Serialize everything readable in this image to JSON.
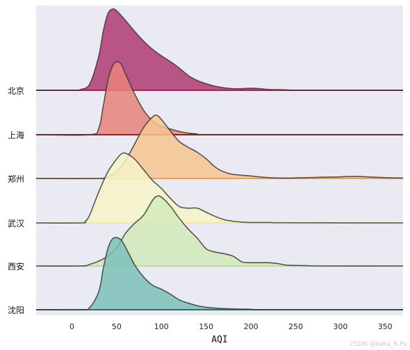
{
  "chart_data": {
    "type": "ridgeline",
    "title": "",
    "xlabel": "AQI",
    "ylabel": "",
    "xlim": [
      -40,
      370
    ],
    "xticks": [
      0,
      50,
      100,
      150,
      200,
      250,
      300,
      350
    ],
    "grid": false,
    "background": "#EAEAF2",
    "series": [
      {
        "name": "北京",
        "fill": "#B03A73",
        "baseline": "#C2185B",
        "points": [
          [
            -40,
            0
          ],
          [
            0,
            0
          ],
          [
            10,
            0.01
          ],
          [
            20,
            0.08
          ],
          [
            30,
            0.42
          ],
          [
            35,
            0.72
          ],
          [
            40,
            0.93
          ],
          [
            45,
            0.99
          ],
          [
            50,
            0.97
          ],
          [
            60,
            0.85
          ],
          [
            70,
            0.72
          ],
          [
            80,
            0.6
          ],
          [
            90,
            0.5
          ],
          [
            100,
            0.42
          ],
          [
            110,
            0.35
          ],
          [
            120,
            0.27
          ],
          [
            130,
            0.18
          ],
          [
            140,
            0.12
          ],
          [
            150,
            0.08
          ],
          [
            160,
            0.05
          ],
          [
            170,
            0.03
          ],
          [
            180,
            0.02
          ],
          [
            190,
            0.02
          ],
          [
            200,
            0.025
          ],
          [
            210,
            0.02
          ],
          [
            220,
            0.01
          ],
          [
            240,
            0.005
          ],
          [
            260,
            0
          ],
          [
            370,
            0
          ]
        ]
      },
      {
        "name": "上海",
        "fill": "#E8837A",
        "baseline": "#9E1F1F",
        "points": [
          [
            -40,
            0
          ],
          [
            20,
            0
          ],
          [
            30,
            0.08
          ],
          [
            35,
            0.35
          ],
          [
            40,
            0.65
          ],
          [
            45,
            0.83
          ],
          [
            50,
            0.89
          ],
          [
            55,
            0.86
          ],
          [
            60,
            0.74
          ],
          [
            70,
            0.5
          ],
          [
            80,
            0.3
          ],
          [
            90,
            0.17
          ],
          [
            100,
            0.1
          ],
          [
            110,
            0.07
          ],
          [
            120,
            0.04
          ],
          [
            130,
            0.02
          ],
          [
            140,
            0.01
          ],
          [
            150,
            0
          ],
          [
            370,
            0
          ]
        ]
      },
      {
        "name": "郑州",
        "fill": "#F6C690",
        "baseline": "#E8A25A",
        "points": [
          [
            -40,
            0
          ],
          [
            30,
            0
          ],
          [
            40,
            0.02
          ],
          [
            50,
            0.08
          ],
          [
            60,
            0.22
          ],
          [
            70,
            0.42
          ],
          [
            80,
            0.62
          ],
          [
            90,
            0.75
          ],
          [
            95,
            0.77
          ],
          [
            100,
            0.72
          ],
          [
            110,
            0.58
          ],
          [
            120,
            0.45
          ],
          [
            130,
            0.38
          ],
          [
            140,
            0.32
          ],
          [
            150,
            0.24
          ],
          [
            160,
            0.14
          ],
          [
            170,
            0.08
          ],
          [
            180,
            0.05
          ],
          [
            200,
            0.03
          ],
          [
            220,
            0.01
          ],
          [
            240,
            0.005
          ],
          [
            260,
            0.01
          ],
          [
            280,
            0.015
          ],
          [
            300,
            0.02
          ],
          [
            315,
            0.025
          ],
          [
            330,
            0.02
          ],
          [
            350,
            0.01
          ],
          [
            370,
            0.005
          ]
        ]
      },
      {
        "name": "武汉",
        "fill": "#F6F5C8",
        "baseline": "#EFEAA0",
        "points": [
          [
            -40,
            0
          ],
          [
            10,
            0
          ],
          [
            15,
            0.02
          ],
          [
            20,
            0.1
          ],
          [
            30,
            0.38
          ],
          [
            40,
            0.62
          ],
          [
            50,
            0.78
          ],
          [
            55,
            0.84
          ],
          [
            60,
            0.85
          ],
          [
            70,
            0.78
          ],
          [
            80,
            0.65
          ],
          [
            90,
            0.52
          ],
          [
            100,
            0.42
          ],
          [
            110,
            0.3
          ],
          [
            120,
            0.2
          ],
          [
            130,
            0.18
          ],
          [
            140,
            0.18
          ],
          [
            150,
            0.13
          ],
          [
            160,
            0.08
          ],
          [
            170,
            0.04
          ],
          [
            180,
            0.02
          ],
          [
            190,
            0.01
          ],
          [
            200,
            0.005
          ],
          [
            220,
            0.005
          ],
          [
            240,
            0.002
          ],
          [
            370,
            0
          ]
        ]
      },
      {
        "name": "西安",
        "fill": "#D2EAB8",
        "baseline": "#B8DE9A",
        "points": [
          [
            -40,
            0
          ],
          [
            10,
            0
          ],
          [
            20,
            0.02
          ],
          [
            30,
            0.06
          ],
          [
            40,
            0.12
          ],
          [
            50,
            0.22
          ],
          [
            60,
            0.4
          ],
          [
            70,
            0.52
          ],
          [
            80,
            0.62
          ],
          [
            90,
            0.8
          ],
          [
            95,
            0.85
          ],
          [
            100,
            0.84
          ],
          [
            110,
            0.73
          ],
          [
            120,
            0.58
          ],
          [
            130,
            0.45
          ],
          [
            140,
            0.34
          ],
          [
            150,
            0.21
          ],
          [
            160,
            0.17
          ],
          [
            170,
            0.15
          ],
          [
            180,
            0.12
          ],
          [
            190,
            0.05
          ],
          [
            200,
            0.04
          ],
          [
            210,
            0.04
          ],
          [
            220,
            0.04
          ],
          [
            230,
            0.03
          ],
          [
            240,
            0.01
          ],
          [
            260,
            0.005
          ],
          [
            280,
            0
          ],
          [
            370,
            0
          ]
        ]
      },
      {
        "name": "沈阳",
        "fill": "#7EBFB8",
        "baseline": "#2A6F6A",
        "points": [
          [
            -40,
            0
          ],
          [
            10,
            0
          ],
          [
            20,
            0.03
          ],
          [
            30,
            0.22
          ],
          [
            35,
            0.5
          ],
          [
            40,
            0.74
          ],
          [
            45,
            0.86
          ],
          [
            50,
            0.88
          ],
          [
            55,
            0.85
          ],
          [
            60,
            0.76
          ],
          [
            70,
            0.55
          ],
          [
            80,
            0.4
          ],
          [
            90,
            0.3
          ],
          [
            100,
            0.25
          ],
          [
            110,
            0.19
          ],
          [
            120,
            0.12
          ],
          [
            130,
            0.08
          ],
          [
            140,
            0.05
          ],
          [
            150,
            0.03
          ],
          [
            160,
            0.02
          ],
          [
            180,
            0.01
          ],
          [
            200,
            0.005
          ],
          [
            220,
            0
          ],
          [
            370,
            0
          ]
        ]
      }
    ]
  },
  "watermark": "CSDN @kaka_R-Py"
}
